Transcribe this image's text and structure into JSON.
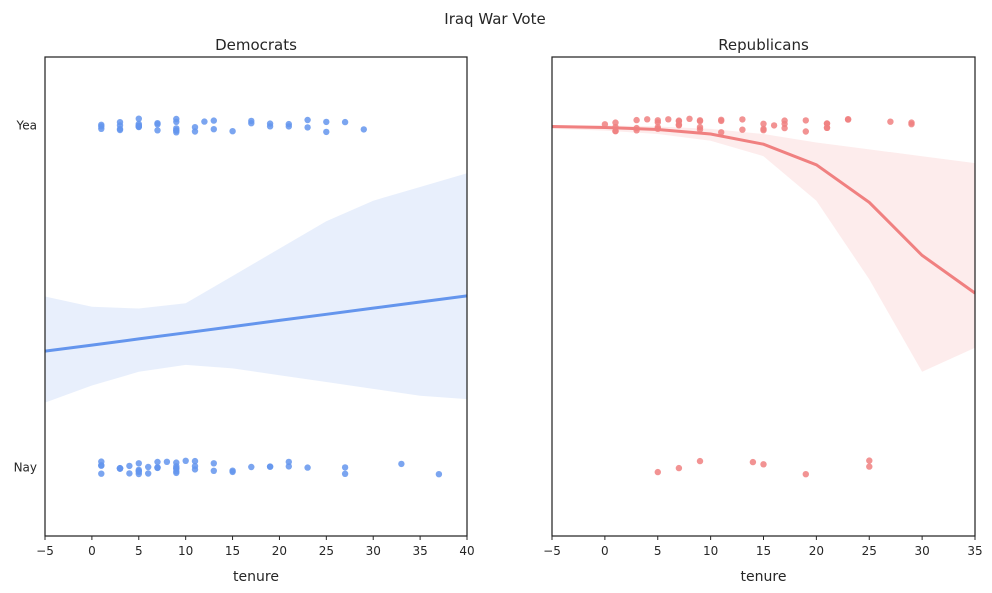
{
  "suptitle": "Iraq War Vote",
  "chart_data": [
    {
      "type": "scatter",
      "title": "Democrats",
      "xlabel": "tenure",
      "xlim": [
        -5,
        40
      ],
      "xticks": [
        -5,
        0,
        5,
        10,
        15,
        20,
        25,
        30,
        35,
        40
      ],
      "ylim": [
        -0.2,
        1.2
      ],
      "yticks": [
        {
          "value": 1,
          "label": "Yea"
        },
        {
          "value": 0,
          "label": "Nay"
        }
      ],
      "color": "#6495ED",
      "yea_tenure": [
        1,
        1,
        1,
        3,
        3,
        3,
        3,
        5,
        5,
        5,
        5,
        5,
        5,
        7,
        7,
        7,
        9,
        9,
        9,
        9,
        9,
        9,
        11,
        11,
        12,
        13,
        13,
        15,
        17,
        17,
        19,
        19,
        21,
        21,
        23,
        23,
        25,
        25,
        27,
        29
      ],
      "nay_tenure": [
        1,
        1,
        1,
        1,
        3,
        3,
        3,
        3,
        3,
        4,
        4,
        5,
        5,
        5,
        5,
        5,
        6,
        6,
        7,
        7,
        7,
        7,
        8,
        9,
        9,
        9,
        9,
        9,
        9,
        10,
        11,
        11,
        11,
        13,
        13,
        15,
        15,
        17,
        19,
        19,
        21,
        21,
        23,
        27,
        27,
        33,
        37
      ],
      "fit": {
        "x": [
          -5,
          0,
          5,
          10,
          15,
          20,
          25,
          30,
          35,
          40
        ],
        "y": [
          0.34,
          0.358,
          0.376,
          0.394,
          0.412,
          0.43,
          0.448,
          0.466,
          0.484,
          0.502
        ],
        "ci_low": [
          0.19,
          0.24,
          0.28,
          0.3,
          0.29,
          0.27,
          0.25,
          0.23,
          0.21,
          0.2
        ],
        "ci_high": [
          0.5,
          0.47,
          0.465,
          0.48,
          0.56,
          0.64,
          0.72,
          0.78,
          0.82,
          0.86
        ]
      }
    },
    {
      "type": "scatter",
      "title": "Republicans",
      "xlabel": "tenure",
      "xlim": [
        -5,
        35
      ],
      "xticks": [
        -5,
        0,
        5,
        10,
        15,
        20,
        25,
        30,
        35
      ],
      "ylim": [
        -0.2,
        1.2
      ],
      "yticks": [],
      "color": "#F08080",
      "yea_tenure": [
        0,
        1,
        1,
        1,
        1,
        3,
        3,
        3,
        4,
        5,
        5,
        5,
        5,
        6,
        7,
        7,
        7,
        7,
        8,
        9,
        9,
        9,
        9,
        11,
        11,
        11,
        13,
        13,
        15,
        15,
        15,
        16,
        17,
        17,
        17,
        19,
        19,
        21,
        21,
        21,
        21,
        23,
        23,
        27,
        29,
        29
      ],
      "nay_tenure": [
        5,
        7,
        9,
        14,
        15,
        19,
        25,
        25
      ],
      "fit": {
        "x": [
          -5,
          0,
          5,
          10,
          15,
          20,
          25,
          30,
          35
        ],
        "y": [
          0.997,
          0.994,
          0.988,
          0.975,
          0.945,
          0.885,
          0.775,
          0.62,
          0.51
        ],
        "ci_low": [
          0.99,
          0.985,
          0.975,
          0.955,
          0.91,
          0.78,
          0.55,
          0.28,
          0.35
        ],
        "ci_high": [
          1.0,
          1.0,
          0.997,
          0.99,
          0.975,
          0.95,
          0.93,
          0.91,
          0.89
        ]
      }
    }
  ]
}
